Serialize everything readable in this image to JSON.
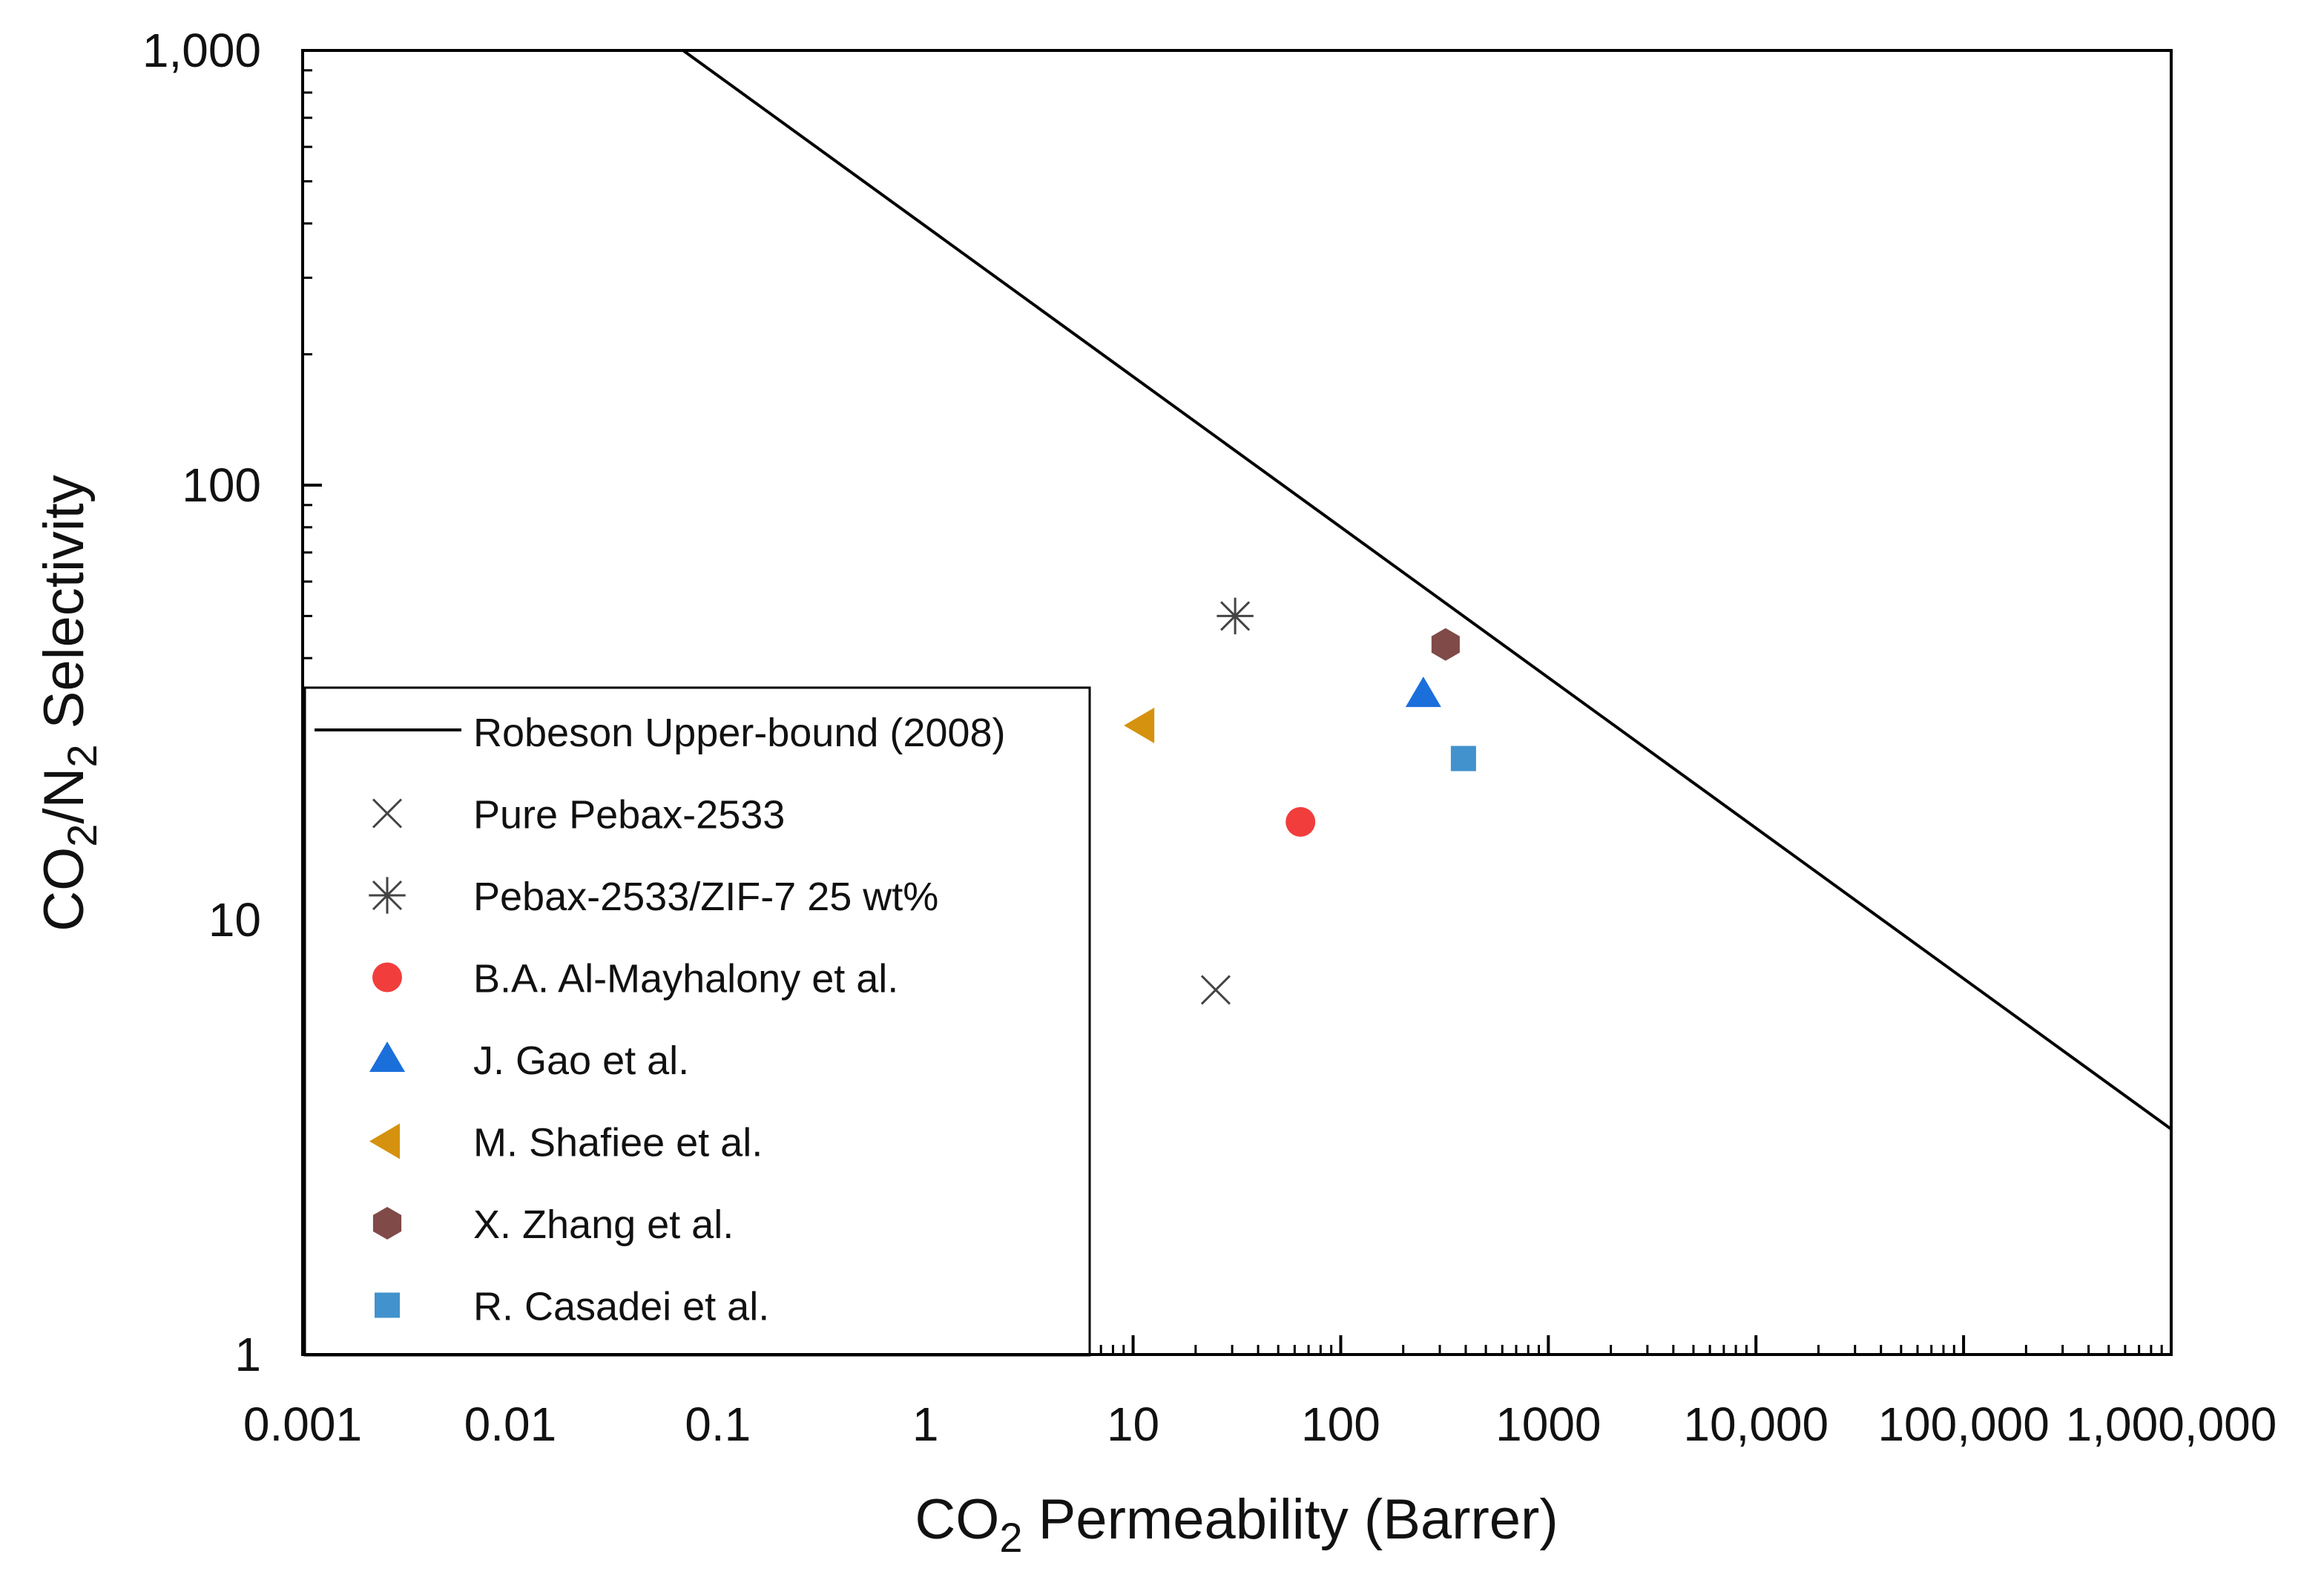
{
  "chart_data": {
    "type": "scatter",
    "xscale": "log",
    "yscale": "log",
    "xlim": [
      0.001,
      1000000
    ],
    "ylim": [
      1,
      1000
    ],
    "xlabel": {
      "pre": "CO",
      "sub": "2",
      "post": " Permeability (Barrer)"
    },
    "ylabel": {
      "p1": "CO",
      "s1": "2",
      "p2": "/N",
      "s2": "2",
      "p3": " Selectivity"
    },
    "xticks": [
      {
        "v": 0.001,
        "label": "0.001"
      },
      {
        "v": 0.01,
        "label": "0.01"
      },
      {
        "v": 0.1,
        "label": "0.1"
      },
      {
        "v": 1,
        "label": "1"
      },
      {
        "v": 10,
        "label": "10"
      },
      {
        "v": 100,
        "label": "100"
      },
      {
        "v": 1000,
        "label": "1000"
      },
      {
        "v": 10000,
        "label": "10,000"
      },
      {
        "v": 100000,
        "label": "100,000"
      },
      {
        "v": 1000000,
        "label": "1,000,000"
      }
    ],
    "yticks": [
      {
        "v": 1,
        "label": "1"
      },
      {
        "v": 10,
        "label": "10"
      },
      {
        "v": 100,
        "label": "100"
      },
      {
        "v": 1000,
        "label": "1,000"
      }
    ],
    "upper_bound": {
      "name": "Robeson Upper-bound (2008)",
      "x": [
        0.068,
        1000000
      ],
      "y": [
        1000,
        3.3
      ],
      "color": "#000000"
    },
    "series": [
      {
        "name": "Pure Pebax-2533",
        "marker": "x",
        "color": "#444444",
        "x": 25,
        "y": 6.9
      },
      {
        "name": "Pebax-2533/ZIF-7 25 wt%",
        "marker": "asterisk",
        "color": "#444444",
        "x": 31,
        "y": 50
      },
      {
        "name": "B.A. Al-Mayhalony et al.",
        "marker": "circle",
        "color": "#f23d3d",
        "x": 64,
        "y": 16.8
      },
      {
        "name": "J. Gao et al.",
        "marker": "triangle-up",
        "color": "#1a6fdb",
        "x": 250,
        "y": 33
      },
      {
        "name": "M. Shafiee et al.",
        "marker": "triangle-left",
        "color": "#d4920e",
        "x": 11,
        "y": 28
      },
      {
        "name": "X. Zhang et al.",
        "marker": "hexagon",
        "color": "#7f4a48",
        "x": 320,
        "y": 43
      },
      {
        "name": "R. Casadei et al.",
        "marker": "square",
        "color": "#4192cd",
        "x": 390,
        "y": 23.5
      }
    ],
    "legend_position": "lower-left"
  }
}
